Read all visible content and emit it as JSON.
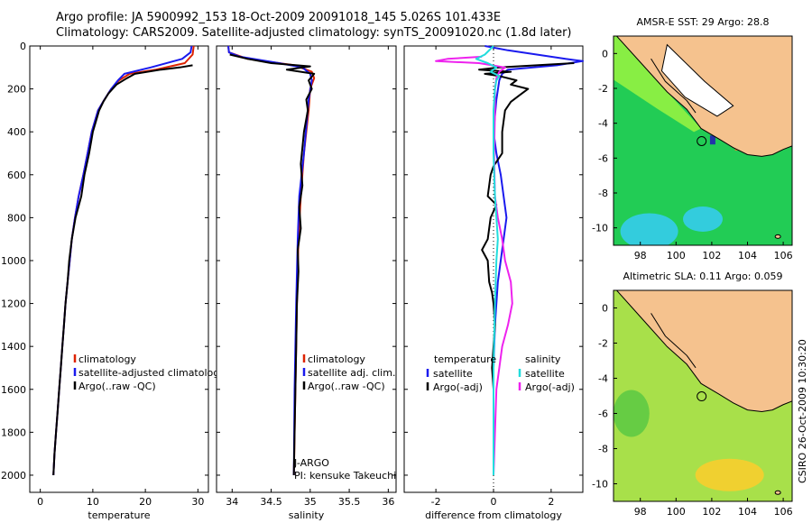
{
  "header": {
    "line1": "Argo profile: JA 5900992_153 18-Oct-2009 20091018_145 5.026S 101.433E",
    "line2": "Climatology: CARS2009. Satellite-adjusted climatology: synTS_20091020.nc (1.8d later)"
  },
  "side_label": "CSIRO 26-Oct-2009 10:30:20",
  "colors": {
    "red": "#dd2200",
    "blue": "#1a1aee",
    "black": "#000000",
    "magenta": "#ee22ee",
    "cyan": "#22dddd"
  },
  "chart_data": [
    {
      "type": "line",
      "xlabel": "temperature",
      "ylabel": "",
      "xlim": [
        -2,
        32
      ],
      "ylim": [
        2080,
        0
      ],
      "xticks": [
        0,
        10,
        20,
        30
      ],
      "yticks": [
        0,
        200,
        400,
        600,
        800,
        1000,
        1200,
        1400,
        1600,
        1800,
        2000
      ],
      "legend": [
        "climatology",
        "satellite-adjusted climatology",
        "Argo(..raw -QC)"
      ],
      "series": [
        {
          "color": "red",
          "points": [
            [
              29.2,
              0
            ],
            [
              29.0,
              40
            ],
            [
              27.5,
              80
            ],
            [
              22,
              110
            ],
            [
              17,
              130
            ],
            [
              15,
              160
            ],
            [
              13.5,
              200
            ],
            [
              12.2,
              250
            ],
            [
              11,
              300
            ],
            [
              9.8,
              400
            ],
            [
              9,
              500
            ],
            [
              8.2,
              600
            ],
            [
              7.3,
              700
            ],
            [
              6.6,
              800
            ],
            [
              6,
              900
            ],
            [
              5.6,
              1000
            ],
            [
              5.2,
              1100
            ],
            [
              4.8,
              1200
            ],
            [
              4.5,
              1300
            ],
            [
              4.2,
              1400
            ],
            [
              3.9,
              1500
            ],
            [
              3.6,
              1600
            ],
            [
              3.3,
              1700
            ],
            [
              3.0,
              1800
            ],
            [
              2.7,
              1900
            ],
            [
              2.5,
              2000
            ]
          ]
        },
        {
          "color": "blue",
          "points": [
            [
              28.8,
              0
            ],
            [
              28.6,
              30
            ],
            [
              27,
              60
            ],
            [
              21,
              100
            ],
            [
              16,
              130
            ],
            [
              14.8,
              160
            ],
            [
              13.5,
              200
            ],
            [
              12.2,
              250
            ],
            [
              11,
              300
            ],
            [
              9.8,
              400
            ],
            [
              9,
              500
            ],
            [
              8.2,
              600
            ],
            [
              7.3,
              700
            ],
            [
              6.6,
              800
            ],
            [
              6,
              900
            ],
            [
              5.6,
              1000
            ],
            [
              5.2,
              1100
            ],
            [
              4.8,
              1200
            ],
            [
              4.5,
              1300
            ],
            [
              4.2,
              1400
            ],
            [
              3.9,
              1500
            ],
            [
              3.6,
              1600
            ],
            [
              3.3,
              1700
            ],
            [
              3.0,
              1800
            ],
            [
              2.7,
              1900
            ],
            [
              2.5,
              2000
            ]
          ]
        },
        {
          "color": "black",
          "points": [
            [
              29,
              90
            ],
            [
              26.5,
              100
            ],
            [
              23,
              110
            ],
            [
              18,
              130
            ],
            [
              16.5,
              150
            ],
            [
              14.5,
              180
            ],
            [
              13,
              220
            ],
            [
              12,
              260
            ],
            [
              11.2,
              300
            ],
            [
              10,
              400
            ],
            [
              9.3,
              500
            ],
            [
              8.4,
              600
            ],
            [
              7.8,
              700
            ],
            [
              6.7,
              800
            ],
            [
              6,
              900
            ],
            [
              5.5,
              1000
            ],
            [
              5.2,
              1100
            ],
            [
              4.8,
              1200
            ],
            [
              4.5,
              1300
            ],
            [
              4.2,
              1400
            ],
            [
              3.9,
              1500
            ],
            [
              3.6,
              1600
            ],
            [
              3.3,
              1700
            ],
            [
              3.0,
              1800
            ],
            [
              2.7,
              1900
            ],
            [
              2.5,
              2000
            ]
          ]
        }
      ],
      "annotations": []
    },
    {
      "type": "line",
      "xlabel": "salinity",
      "ylabel": "",
      "xlim": [
        33.8,
        36.1
      ],
      "ylim": [
        2080,
        0
      ],
      "xticks": [
        34,
        34.5,
        35,
        35.5,
        36
      ],
      "yticks": [
        0,
        200,
        400,
        600,
        800,
        1000,
        1200,
        1400,
        1600,
        1800,
        2000
      ],
      "legend": [
        "climatology",
        "satellite adj. clim.",
        "Argo(..raw -QC)"
      ],
      "series": [
        {
          "color": "red",
          "points": [
            [
              33.95,
              0
            ],
            [
              33.96,
              30
            ],
            [
              34.2,
              60
            ],
            [
              34.8,
              90
            ],
            [
              35.02,
              120
            ],
            [
              35.05,
              150
            ],
            [
              35.0,
              200
            ],
            [
              34.98,
              300
            ],
            [
              34.92,
              500
            ],
            [
              34.88,
              700
            ],
            [
              34.85,
              900
            ],
            [
              34.83,
              1200
            ],
            [
              34.81,
              1600
            ],
            [
              34.79,
              2000
            ]
          ]
        },
        {
          "color": "blue",
          "points": [
            [
              33.95,
              0
            ],
            [
              33.96,
              30
            ],
            [
              34.1,
              50
            ],
            [
              34.6,
              80
            ],
            [
              34.9,
              100
            ],
            [
              35.0,
              130
            ],
            [
              35.02,
              160
            ],
            [
              34.98,
              250
            ],
            [
              34.92,
              500
            ],
            [
              34.86,
              700
            ],
            [
              34.84,
              900
            ],
            [
              34.82,
              1200
            ],
            [
              34.8,
              1600
            ],
            [
              34.79,
              2000
            ]
          ]
        },
        {
          "color": "black",
          "points": [
            [
              33.97,
              40
            ],
            [
              34.2,
              60
            ],
            [
              34.5,
              80
            ],
            [
              35.0,
              95
            ],
            [
              34.7,
              110
            ],
            [
              35.05,
              130
            ],
            [
              34.98,
              160
            ],
            [
              35.02,
              200
            ],
            [
              34.95,
              250
            ],
            [
              34.97,
              300
            ],
            [
              34.92,
              400
            ],
            [
              34.88,
              550
            ],
            [
              34.9,
              650
            ],
            [
              34.86,
              750
            ],
            [
              34.88,
              850
            ],
            [
              34.84,
              950
            ],
            [
              34.85,
              1050
            ],
            [
              34.83,
              1200
            ],
            [
              34.82,
              1400
            ],
            [
              34.81,
              1600
            ],
            [
              34.8,
              1800
            ],
            [
              34.79,
              2000
            ]
          ]
        }
      ],
      "annotations": [
        "J-ARGO",
        "PI: kensuke Takeuchi"
      ]
    },
    {
      "type": "line",
      "xlabel": "difference from climatology",
      "ylabel": "",
      "xlim": [
        -3.1,
        3.1
      ],
      "ylim": [
        2080,
        0
      ],
      "xticks": [
        -2,
        0,
        2
      ],
      "yticks": [
        0,
        200,
        400,
        600,
        800,
        1000,
        1200,
        1400,
        1600,
        1800,
        2000
      ],
      "legend_headers": [
        "temperature",
        "salinity"
      ],
      "legend": [
        "satellite",
        "Argo(-adj)",
        "satellite",
        "Argo(-adj)"
      ],
      "series": [
        {
          "color": "blue",
          "points": [
            [
              -0.3,
              0
            ],
            [
              0.5,
              20
            ],
            [
              2.5,
              60
            ],
            [
              3.1,
              70
            ],
            [
              2.2,
              90
            ],
            [
              0.5,
              110
            ],
            [
              0.3,
              130
            ],
            [
              0.2,
              160
            ],
            [
              0.1,
              250
            ],
            [
              0.0,
              400
            ],
            [
              0.1,
              500
            ],
            [
              0.25,
              600
            ],
            [
              0.35,
              700
            ],
            [
              0.45,
              800
            ],
            [
              0.35,
              900
            ],
            [
              0.25,
              1000
            ],
            [
              0.15,
              1100
            ],
            [
              0.05,
              1300
            ],
            [
              0.0,
              1500
            ],
            [
              0.0,
              2000
            ]
          ]
        },
        {
          "color": "black",
          "points": [
            [
              2.8,
              80
            ],
            [
              0.2,
              100
            ],
            [
              -0.5,
              110
            ],
            [
              0.6,
              120
            ],
            [
              -0.3,
              130
            ],
            [
              0.2,
              140
            ],
            [
              0.8,
              160
            ],
            [
              0.6,
              180
            ],
            [
              1.2,
              200
            ],
            [
              0.9,
              230
            ],
            [
              0.6,
              260
            ],
            [
              0.4,
              300
            ],
            [
              0.3,
              400
            ],
            [
              0.3,
              500
            ],
            [
              0.0,
              560
            ],
            [
              -0.1,
              600
            ],
            [
              -0.2,
              700
            ],
            [
              0.1,
              740
            ],
            [
              -0.1,
              800
            ],
            [
              -0.2,
              900
            ],
            [
              -0.4,
              950
            ],
            [
              -0.2,
              1000
            ],
            [
              -0.15,
              1100
            ],
            [
              -0.05,
              1150
            ],
            [
              0.0,
              1200
            ],
            [
              0.05,
              1300
            ],
            [
              0.0,
              1400
            ],
            [
              -0.05,
              1500
            ],
            [
              0.0,
              1600
            ],
            [
              0.0,
              2000
            ]
          ]
        },
        {
          "color": "magenta",
          "points": [
            [
              -0.4,
              50
            ],
            [
              -1.6,
              60
            ],
            [
              -2.0,
              70
            ],
            [
              -0.5,
              80
            ],
            [
              0.4,
              100
            ],
            [
              0.2,
              120
            ],
            [
              0.1,
              150
            ],
            [
              0.05,
              200
            ],
            [
              0.05,
              300
            ],
            [
              0.02,
              500
            ],
            [
              0.05,
              700
            ],
            [
              0.15,
              800
            ],
            [
              0.3,
              900
            ],
            [
              0.4,
              1000
            ],
            [
              0.6,
              1100
            ],
            [
              0.65,
              1200
            ],
            [
              0.5,
              1300
            ],
            [
              0.3,
              1400
            ],
            [
              0.2,
              1500
            ],
            [
              0.1,
              1600
            ],
            [
              0.05,
              1800
            ],
            [
              0.0,
              2000
            ]
          ]
        },
        {
          "color": "cyan",
          "points": [
            [
              0,
              0
            ],
            [
              -0.3,
              40
            ],
            [
              -0.6,
              60
            ],
            [
              -0.2,
              80
            ],
            [
              0.1,
              100
            ],
            [
              -0.1,
              120
            ],
            [
              0.2,
              140
            ],
            [
              0.1,
              160
            ],
            [
              0.05,
              200
            ],
            [
              0.0,
              300
            ],
            [
              0.0,
              500
            ],
            [
              0.05,
              700
            ],
            [
              0.1,
              800
            ],
            [
              0.15,
              900
            ],
            [
              0.1,
              1000
            ],
            [
              0.05,
              1200
            ],
            [
              0.0,
              1500
            ],
            [
              0.0,
              2000
            ]
          ]
        }
      ],
      "annotations": []
    }
  ],
  "maps": [
    {
      "title": "AMSR-E SST: 29 Argo: 28.8",
      "xticks": [
        98,
        100,
        102,
        104,
        106
      ],
      "yticks": [
        0,
        -2,
        -4,
        -6,
        -8,
        -10
      ]
    },
    {
      "title": "Altimetric SLA: 0.11 Argo: 0.059",
      "xticks": [
        98,
        100,
        102,
        104,
        106
      ],
      "yticks": [
        0,
        -2,
        -4,
        -6,
        -8,
        -10
      ]
    }
  ],
  "map_extent": {
    "lon": [
      96.5,
      106.5
    ],
    "lat": [
      -11,
      1
    ]
  },
  "argo_position": {
    "lon": 101.433,
    "lat": -5.026
  }
}
